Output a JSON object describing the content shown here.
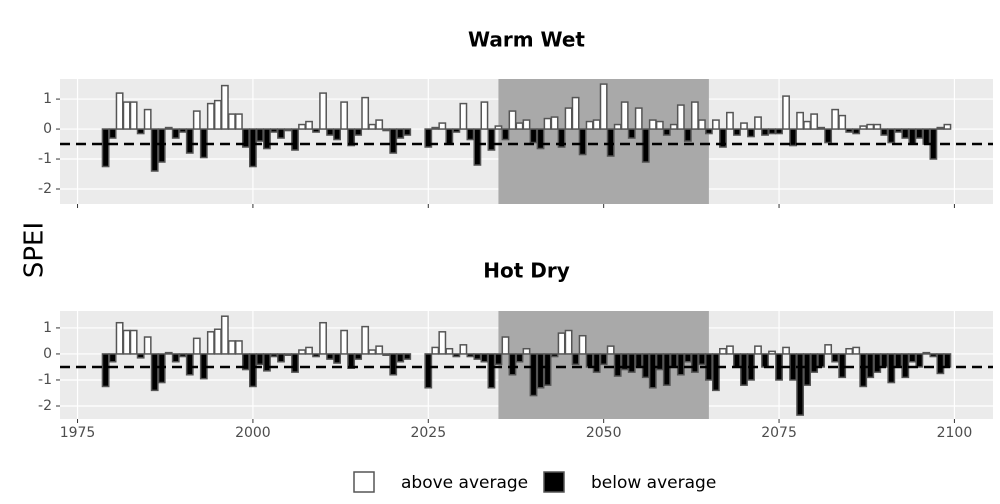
{
  "ylabel": "SPEI",
  "legend": [
    {
      "name": "above average",
      "color": "#ffffff"
    },
    {
      "name": "below average",
      "color": "#000000"
    }
  ],
  "chart_data": [
    {
      "type": "bar",
      "title": "Warm Wet",
      "x": [
        1979,
        1980,
        1981,
        1982,
        1983,
        1984,
        1985,
        1986,
        1987,
        1988,
        1989,
        1990,
        1991,
        1992,
        1993,
        1994,
        1995,
        1996,
        1997,
        1998,
        1999,
        2000,
        2001,
        2002,
        2003,
        2004,
        2005,
        2006,
        2007,
        2008,
        2009,
        2010,
        2011,
        2012,
        2013,
        2014,
        2015,
        2016,
        2017,
        2018,
        2019,
        2020,
        2021,
        2022,
        2023,
        2024,
        2025,
        2026,
        2027,
        2028,
        2029,
        2030,
        2031,
        2032,
        2033,
        2034,
        2035,
        2036,
        2037,
        2038,
        2039,
        2040,
        2041,
        2042,
        2043,
        2044,
        2045,
        2046,
        2047,
        2048,
        2049,
        2050,
        2051,
        2052,
        2053,
        2054,
        2055,
        2056,
        2057,
        2058,
        2059,
        2060,
        2061,
        2062,
        2063,
        2064,
        2065,
        2066,
        2067,
        2068,
        2069,
        2070,
        2071,
        2072,
        2073,
        2074,
        2075,
        2076,
        2077,
        2078,
        2079,
        2080,
        2081,
        2082,
        2083,
        2084,
        2085,
        2086,
        2087,
        2088,
        2089,
        2090,
        2091,
        2092,
        2093,
        2094,
        2095,
        2096,
        2097,
        2098,
        2099
      ],
      "values": [
        -1.25,
        -0.3,
        1.2,
        0.9,
        0.9,
        -0.15,
        0.65,
        -1.4,
        -1.1,
        0.05,
        -0.3,
        -0.1,
        -0.8,
        0.6,
        -0.95,
        0.85,
        0.95,
        1.45,
        0.5,
        0.5,
        -0.6,
        -1.25,
        -0.4,
        -0.65,
        -0.1,
        -0.3,
        -0.05,
        -0.7,
        0.15,
        0.25,
        -0.1,
        1.2,
        -0.2,
        -0.35,
        0.9,
        -0.55,
        -0.2,
        1.05,
        0.15,
        0.3,
        -0.05,
        -0.8,
        -0.3,
        -0.2,
        null,
        null,
        -0.6,
        0.05,
        0.2,
        -0.5,
        -0.1,
        0.85,
        -0.35,
        -1.2,
        0.9,
        -0.7,
        0.1,
        -0.35,
        0.6,
        0.2,
        0.3,
        -0.45,
        -0.65,
        0.35,
        0.4,
        -0.6,
        0.7,
        1.05,
        -0.85,
        0.25,
        0.3,
        1.5,
        -0.9,
        0.15,
        0.9,
        -0.3,
        0.7,
        -1.1,
        0.3,
        0.25,
        -0.2,
        0.15,
        0.8,
        -0.4,
        0.9,
        0.3,
        -0.15,
        0.3,
        -0.6,
        0.55,
        -0.2,
        0.2,
        -0.25,
        0.4,
        -0.2,
        -0.15,
        -0.15,
        1.1,
        -0.55,
        0.55,
        0.25,
        0.5,
        0.05,
        -0.45,
        0.65,
        0.45,
        -0.1,
        -0.15,
        0.1,
        0.15,
        0.15,
        -0.2,
        -0.45,
        -0.1,
        -0.3,
        -0.5,
        -0.3,
        -0.5,
        -1.0,
        0.05,
        0.15
      ],
      "threshold": -0.5,
      "highlight": [
        2035,
        2065
      ],
      "xlim": [
        1972.5,
        2105.5
      ],
      "ylim": [
        -2.5,
        1.67
      ],
      "xticks": [
        1975,
        2000,
        2025,
        2050,
        2075,
        2100
      ],
      "yticks": [
        -2,
        -1,
        0,
        1
      ],
      "xtick_labels": false,
      "grid": true
    },
    {
      "type": "bar",
      "title": "Hot Dry",
      "x": [
        1979,
        1980,
        1981,
        1982,
        1983,
        1984,
        1985,
        1986,
        1987,
        1988,
        1989,
        1990,
        1991,
        1992,
        1993,
        1994,
        1995,
        1996,
        1997,
        1998,
        1999,
        2000,
        2001,
        2002,
        2003,
        2004,
        2005,
        2006,
        2007,
        2008,
        2009,
        2010,
        2011,
        2012,
        2013,
        2014,
        2015,
        2016,
        2017,
        2018,
        2019,
        2020,
        2021,
        2022,
        2023,
        2024,
        2025,
        2026,
        2027,
        2028,
        2029,
        2030,
        2031,
        2032,
        2033,
        2034,
        2035,
        2036,
        2037,
        2038,
        2039,
        2040,
        2041,
        2042,
        2043,
        2044,
        2045,
        2046,
        2047,
        2048,
        2049,
        2050,
        2051,
        2052,
        2053,
        2054,
        2055,
        2056,
        2057,
        2058,
        2059,
        2060,
        2061,
        2062,
        2063,
        2064,
        2065,
        2066,
        2067,
        2068,
        2069,
        2070,
        2071,
        2072,
        2073,
        2074,
        2075,
        2076,
        2077,
        2078,
        2079,
        2080,
        2081,
        2082,
        2083,
        2084,
        2085,
        2086,
        2087,
        2088,
        2089,
        2090,
        2091,
        2092,
        2093,
        2094,
        2095,
        2096,
        2097,
        2098,
        2099
      ],
      "values": [
        -1.25,
        -0.3,
        1.2,
        0.9,
        0.9,
        -0.15,
        0.65,
        -1.4,
        -1.1,
        0.05,
        -0.3,
        -0.1,
        -0.8,
        0.6,
        -0.95,
        0.85,
        0.95,
        1.45,
        0.5,
        0.5,
        -0.6,
        -1.25,
        -0.4,
        -0.65,
        -0.1,
        -0.3,
        -0.05,
        -0.7,
        0.15,
        0.25,
        -0.1,
        1.2,
        -0.2,
        -0.35,
        0.9,
        -0.55,
        -0.2,
        1.05,
        0.15,
        0.3,
        -0.05,
        -0.8,
        -0.3,
        -0.2,
        null,
        null,
        -1.3,
        0.25,
        0.85,
        0.2,
        -0.1,
        0.35,
        -0.1,
        -0.2,
        -0.3,
        -1.3,
        -0.4,
        0.65,
        -0.8,
        -0.3,
        0.2,
        -1.6,
        -1.3,
        -1.2,
        -0.1,
        0.8,
        0.9,
        -0.4,
        0.7,
        -0.5,
        -0.7,
        -0.4,
        0.3,
        -0.85,
        -0.6,
        -0.7,
        -0.5,
        -0.9,
        -1.3,
        -0.6,
        -1.2,
        -0.5,
        -0.8,
        -0.3,
        -0.7,
        -0.4,
        -1.0,
        -1.4,
        0.2,
        0.3,
        -0.5,
        -1.2,
        -1.0,
        0.3,
        -0.5,
        0.1,
        -1.0,
        0.25,
        -1.0,
        -2.35,
        -1.2,
        -0.7,
        -0.5,
        0.35,
        -0.3,
        -0.9,
        0.2,
        0.25,
        -1.25,
        -0.9,
        -0.7,
        -0.5,
        -1.1,
        -0.5,
        -0.9,
        -0.3,
        -0.5,
        0.05,
        -0.1,
        -0.75,
        -0.5
      ],
      "threshold": -0.5,
      "highlight": [
        2035,
        2065
      ],
      "xlim": [
        1972.5,
        2105.5
      ],
      "ylim": [
        -2.5,
        1.65
      ],
      "xticks": [
        1975,
        2000,
        2025,
        2050,
        2075,
        2100
      ],
      "yticks": [
        -2,
        -1,
        0,
        1
      ],
      "xtick_labels": true,
      "grid": true
    }
  ]
}
